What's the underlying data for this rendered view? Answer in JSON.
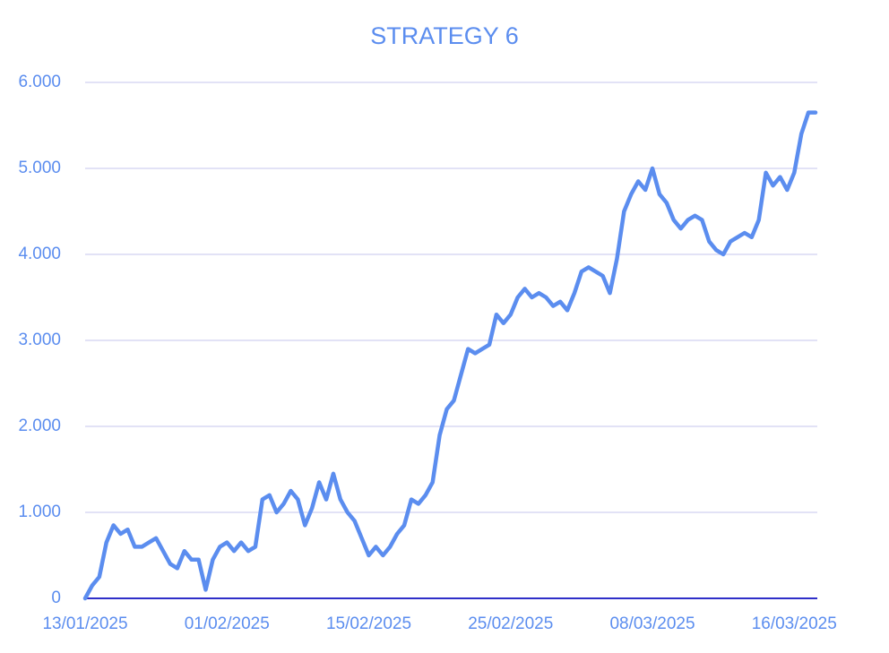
{
  "chart_data": {
    "type": "line",
    "title": "STRATEGY 6",
    "categories": [
      "13/01/2025",
      null,
      null,
      null,
      null,
      null,
      null,
      null,
      null,
      null,
      null,
      null,
      null,
      null,
      null,
      null,
      null,
      null,
      null,
      null,
      "01/02/2025",
      null,
      null,
      null,
      null,
      null,
      null,
      null,
      null,
      null,
      null,
      null,
      null,
      null,
      null,
      null,
      null,
      null,
      null,
      null,
      "15/02/2025",
      null,
      null,
      null,
      null,
      null,
      null,
      null,
      null,
      null,
      null,
      null,
      null,
      null,
      null,
      null,
      null,
      null,
      null,
      null,
      "25/02/2025",
      null,
      null,
      null,
      null,
      null,
      null,
      null,
      null,
      null,
      null,
      null,
      null,
      null,
      null,
      null,
      null,
      null,
      null,
      null,
      "08/03/2025",
      null,
      null,
      null,
      null,
      null,
      null,
      null,
      null,
      null,
      null,
      null,
      null,
      null,
      null,
      null,
      null,
      null,
      null,
      null,
      "16/03/2025",
      null,
      null,
      null
    ],
    "series": [
      {
        "color": "#5b8def",
        "values": [
          0,
          150,
          250,
          650,
          850,
          750,
          800,
          600,
          600,
          650,
          700,
          550,
          400,
          350,
          550,
          450,
          450,
          100,
          450,
          600,
          650,
          550,
          650,
          550,
          600,
          1150,
          1200,
          1000,
          1100,
          1250,
          1150,
          850,
          1050,
          1350,
          1150,
          1450,
          1150,
          1000,
          900,
          700,
          500,
          600,
          500,
          600,
          750,
          850,
          1150,
          1100,
          1200,
          1350,
          1900,
          2200,
          2300,
          2600,
          2900,
          2850,
          2900,
          2950,
          3300,
          3200,
          3300,
          3500,
          3600,
          3500,
          3550,
          3500,
          3400,
          3450,
          3350,
          3550,
          3800,
          3850,
          3800,
          3750,
          3550,
          3950,
          4500,
          4700,
          4850,
          4750,
          5000,
          4700,
          4600,
          4400,
          4300,
          4400,
          4450,
          4400,
          4150,
          4050,
          4000,
          4150,
          4200,
          4250,
          4200,
          4400,
          4950,
          4800,
          4900,
          4750,
          4950,
          5400,
          5650,
          5650
        ]
      }
    ],
    "ylim": [
      0,
      6000
    ],
    "yticks": [
      0,
      {
        "value": 1000,
        "label": "1.000"
      },
      {
        "value": 2000,
        "label": "2.000"
      },
      {
        "value": 3000,
        "label": "3.000"
      },
      {
        "value": 4000,
        "label": "4.000"
      },
      {
        "value": 5000,
        "label": "5.000"
      },
      {
        "value": 6000,
        "label": "6.000"
      }
    ],
    "grid": true
  }
}
